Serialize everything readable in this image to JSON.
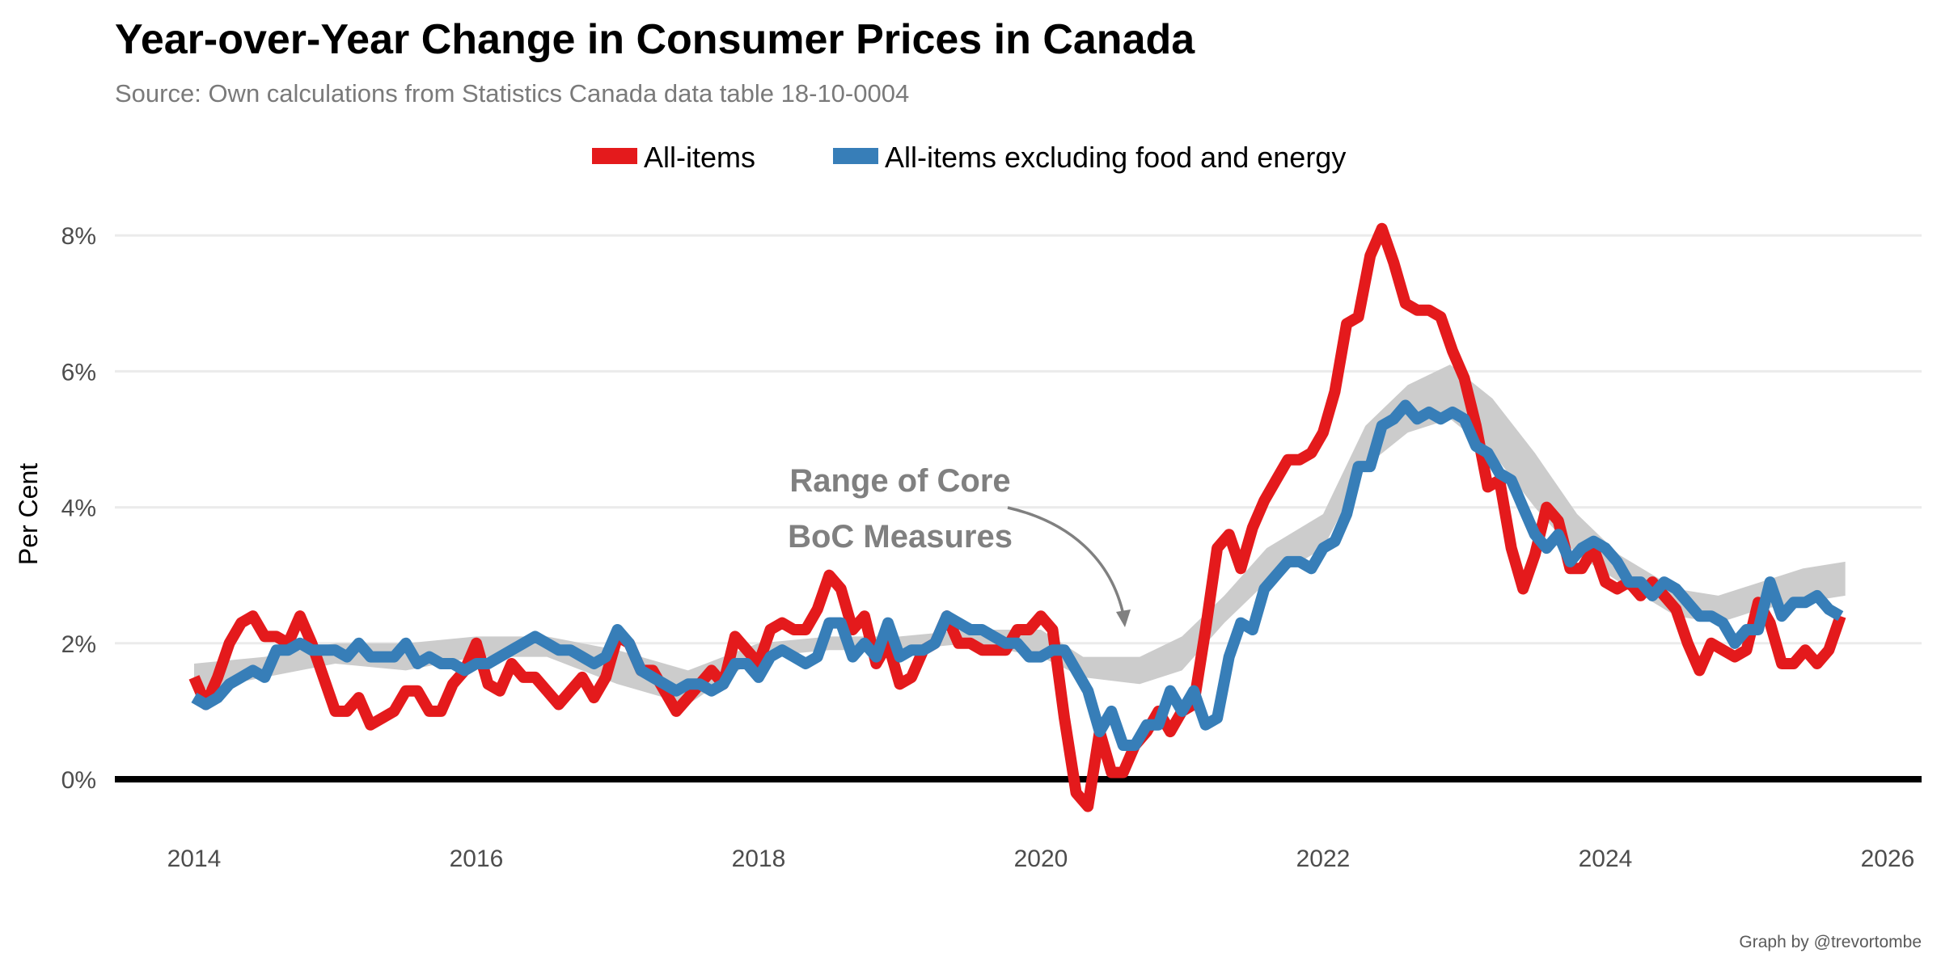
{
  "title": "Year-over-Year Change in Consumer Prices in Canada",
  "subtitle": "Source: Own calculations from Statistics Canada data table 18-10-0004",
  "caption": "Graph by @trevortombe",
  "chart_data": {
    "type": "line",
    "title": "Year-over-Year Change in Consumer Prices in Canada",
    "xlabel": "",
    "ylabel": "Per Cent",
    "xlim": [
      2013.6,
      2026.1
    ],
    "ylim": [
      -0.8,
      8.8
    ],
    "x_ticks": [
      2014,
      2016,
      2018,
      2020,
      2022,
      2024,
      2026
    ],
    "x_tick_labels": [
      "2014",
      "2016",
      "2018",
      "2020",
      "2022",
      "2024",
      "2026"
    ],
    "y_ticks": [
      0,
      2,
      4,
      6,
      8
    ],
    "y_tick_labels": [
      "0%",
      "2%",
      "4%",
      "6%",
      "8%"
    ],
    "grid": "horizontal",
    "legend_position": "top",
    "start": 2014.0,
    "step_months": 1,
    "series": [
      {
        "name": "All-items",
        "color": "#e41a1c",
        "values": [
          1.5,
          1.1,
          1.5,
          2.0,
          2.3,
          2.4,
          2.1,
          2.1,
          2.0,
          2.4,
          2.0,
          1.5,
          1.0,
          1.0,
          1.2,
          0.8,
          0.9,
          1.0,
          1.3,
          1.3,
          1.0,
          1.0,
          1.4,
          1.6,
          2.0,
          1.4,
          1.3,
          1.7,
          1.5,
          1.5,
          1.3,
          1.1,
          1.3,
          1.5,
          1.2,
          1.5,
          2.1,
          2.0,
          1.6,
          1.6,
          1.3,
          1.0,
          1.2,
          1.4,
          1.6,
          1.4,
          2.1,
          1.9,
          1.7,
          2.2,
          2.3,
          2.2,
          2.2,
          2.5,
          3.0,
          2.8,
          2.2,
          2.4,
          1.7,
          2.0,
          1.4,
          1.5,
          1.9,
          2.0,
          2.4,
          2.0,
          2.0,
          1.9,
          1.9,
          1.9,
          2.2,
          2.2,
          2.4,
          2.2,
          0.9,
          -0.2,
          -0.4,
          0.7,
          0.1,
          0.1,
          0.5,
          0.7,
          1.0,
          0.7,
          1.0,
          1.1,
          2.2,
          3.4,
          3.6,
          3.1,
          3.7,
          4.1,
          4.4,
          4.7,
          4.7,
          4.8,
          5.1,
          5.7,
          6.7,
          6.8,
          7.7,
          8.1,
          7.6,
          7.0,
          6.9,
          6.9,
          6.8,
          6.3,
          5.9,
          5.2,
          4.3,
          4.4,
          3.4,
          2.8,
          3.3,
          4.0,
          3.8,
          3.1,
          3.1,
          3.4,
          2.9,
          2.8,
          2.9,
          2.7,
          2.9,
          2.7,
          2.5,
          2.0,
          1.6,
          2.0,
          1.9,
          1.8,
          1.9,
          2.6,
          2.3,
          1.7,
          1.7,
          1.9,
          1.7,
          1.9,
          2.4
        ]
      },
      {
        "name": "All-items excluding food and energy",
        "color": "#377eb8",
        "values": [
          1.2,
          1.1,
          1.2,
          1.4,
          1.5,
          1.6,
          1.5,
          1.9,
          1.9,
          2.0,
          1.9,
          1.9,
          1.9,
          1.8,
          2.0,
          1.8,
          1.8,
          1.8,
          2.0,
          1.7,
          1.8,
          1.7,
          1.7,
          1.6,
          1.7,
          1.7,
          1.8,
          1.9,
          2.0,
          2.1,
          2.0,
          1.9,
          1.9,
          1.8,
          1.7,
          1.8,
          2.2,
          2.0,
          1.6,
          1.5,
          1.4,
          1.3,
          1.4,
          1.4,
          1.3,
          1.4,
          1.7,
          1.7,
          1.5,
          1.8,
          1.9,
          1.8,
          1.7,
          1.8,
          2.3,
          2.3,
          1.8,
          2.0,
          1.8,
          2.3,
          1.8,
          1.9,
          1.9,
          2.0,
          2.4,
          2.3,
          2.2,
          2.2,
          2.1,
          2.0,
          2.0,
          1.8,
          1.8,
          1.9,
          1.9,
          1.6,
          1.3,
          0.7,
          1.0,
          0.5,
          0.5,
          0.8,
          0.8,
          1.3,
          1.0,
          1.3,
          0.8,
          0.9,
          1.8,
          2.3,
          2.2,
          2.8,
          3.0,
          3.2,
          3.2,
          3.1,
          3.4,
          3.5,
          3.9,
          4.6,
          4.6,
          5.2,
          5.3,
          5.5,
          5.3,
          5.4,
          5.3,
          5.4,
          5.3,
          4.9,
          4.8,
          4.5,
          4.4,
          4.0,
          3.6,
          3.4,
          3.6,
          3.2,
          3.4,
          3.5,
          3.4,
          3.2,
          2.9,
          2.9,
          2.7,
          2.9,
          2.8,
          2.6,
          2.4,
          2.4,
          2.3,
          2.0,
          2.2,
          2.2,
          2.9,
          2.4,
          2.6,
          2.6,
          2.7,
          2.5,
          2.4
        ]
      }
    ],
    "band": {
      "name": "Range of Core BoC Measures",
      "color": "#cccccc",
      "points": [
        {
          "x": 2014.0,
          "lo": 1.3,
          "hi": 1.7
        },
        {
          "x": 2014.5,
          "lo": 1.5,
          "hi": 1.8
        },
        {
          "x": 2015.0,
          "lo": 1.7,
          "hi": 2.0
        },
        {
          "x": 2015.5,
          "lo": 1.6,
          "hi": 2.0
        },
        {
          "x": 2016.0,
          "lo": 1.8,
          "hi": 2.1
        },
        {
          "x": 2016.5,
          "lo": 1.8,
          "hi": 2.1
        },
        {
          "x": 2017.0,
          "lo": 1.4,
          "hi": 1.9
        },
        {
          "x": 2017.5,
          "lo": 1.1,
          "hi": 1.6
        },
        {
          "x": 2018.0,
          "lo": 1.8,
          "hi": 2.0
        },
        {
          "x": 2018.5,
          "lo": 1.9,
          "hi": 2.1
        },
        {
          "x": 2019.0,
          "lo": 1.9,
          "hi": 2.1
        },
        {
          "x": 2019.5,
          "lo": 2.0,
          "hi": 2.2
        },
        {
          "x": 2020.0,
          "lo": 1.8,
          "hi": 2.2
        },
        {
          "x": 2020.3,
          "lo": 1.5,
          "hi": 1.8
        },
        {
          "x": 2020.7,
          "lo": 1.4,
          "hi": 1.8
        },
        {
          "x": 2021.0,
          "lo": 1.6,
          "hi": 2.1
        },
        {
          "x": 2021.3,
          "lo": 2.3,
          "hi": 2.7
        },
        {
          "x": 2021.6,
          "lo": 2.9,
          "hi": 3.4
        },
        {
          "x": 2022.0,
          "lo": 3.4,
          "hi": 3.9
        },
        {
          "x": 2022.3,
          "lo": 4.6,
          "hi": 5.2
        },
        {
          "x": 2022.6,
          "lo": 5.1,
          "hi": 5.8
        },
        {
          "x": 2022.9,
          "lo": 5.3,
          "hi": 6.1
        },
        {
          "x": 2023.2,
          "lo": 4.8,
          "hi": 5.6
        },
        {
          "x": 2023.5,
          "lo": 4.0,
          "hi": 4.8
        },
        {
          "x": 2023.8,
          "lo": 3.3,
          "hi": 3.9
        },
        {
          "x": 2024.1,
          "lo": 2.9,
          "hi": 3.3
        },
        {
          "x": 2024.5,
          "lo": 2.4,
          "hi": 2.8
        },
        {
          "x": 2024.8,
          "lo": 2.3,
          "hi": 2.7
        },
        {
          "x": 2025.1,
          "lo": 2.5,
          "hi": 2.9
        },
        {
          "x": 2025.4,
          "lo": 2.6,
          "hi": 3.1
        },
        {
          "x": 2025.7,
          "lo": 2.7,
          "hi": 3.2
        }
      ]
    },
    "annotations": [
      {
        "text_line1": "Range of Core",
        "text_line2": "BoC Measures",
        "arrow_to": {
          "x": 2020.6,
          "y": 2.3
        }
      }
    ]
  }
}
